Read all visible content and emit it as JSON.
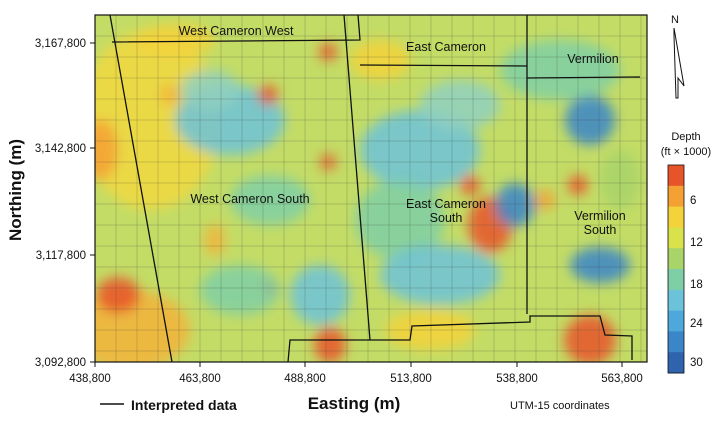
{
  "map": {
    "x_axis_title": "Easting (m)",
    "y_axis_title": "Northing (m)",
    "x_ticks": [
      "438,800",
      "463,800",
      "488,800",
      "513,800",
      "538,800",
      "563,800"
    ],
    "y_ticks": [
      "3,167,800",
      "3,142,800",
      "3,117,800",
      "3,092,800"
    ],
    "areas": [
      {
        "name": "West Cameron West",
        "lines": [
          "West Cameron West"
        ]
      },
      {
        "name": "East Cameron",
        "lines": [
          "East Cameron"
        ]
      },
      {
        "name": "Vermilion",
        "lines": [
          "Vermilion"
        ]
      },
      {
        "name": "West Cameron South",
        "lines": [
          "West Cameron South"
        ]
      },
      {
        "name": "East Cameron South",
        "lines": [
          "East Cameron",
          "South"
        ]
      },
      {
        "name": "Vermilion South",
        "lines": [
          "Vermilion",
          "South"
        ]
      }
    ],
    "north_label": "N",
    "colorbar": {
      "title_lines": [
        "Depth",
        "(ft × 1000)"
      ],
      "ticks": [
        "6",
        "12",
        "18",
        "24",
        "30"
      ],
      "colors": [
        "#e8542a",
        "#f5a033",
        "#f4d23a",
        "#d9e24a",
        "#a8d46a",
        "#7fcfa6",
        "#6cc2d9",
        "#4fa8dc",
        "#3b85c9",
        "#2f63ad"
      ]
    },
    "legend_label": "Interpreted data",
    "crs_note": "UTM-15 coordinates"
  }
}
